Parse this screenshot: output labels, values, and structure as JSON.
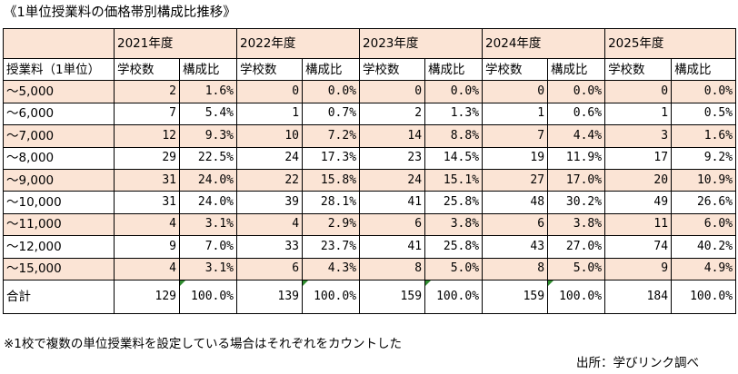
{
  "title": "《1単位授業料の価格帯別構成比推移》",
  "table": {
    "years": [
      "2021年度",
      "2022年度",
      "2023年度",
      "2024年度",
      "2025年度"
    ],
    "row_header": "授業料（1単位）",
    "col_count_label": "学校数",
    "col_ratio_label": "構成比",
    "rows": [
      {
        "label": "～5,000",
        "cells": [
          [
            "2",
            "1.6%"
          ],
          [
            "0",
            "0.0%"
          ],
          [
            "0",
            "0.0%"
          ],
          [
            "0",
            "0.0%"
          ],
          [
            "0",
            "0.0%"
          ]
        ]
      },
      {
        "label": "～6,000",
        "cells": [
          [
            "7",
            "5.4%"
          ],
          [
            "1",
            "0.7%"
          ],
          [
            "2",
            "1.3%"
          ],
          [
            "1",
            "0.6%"
          ],
          [
            "1",
            "0.5%"
          ]
        ]
      },
      {
        "label": "～7,000",
        "cells": [
          [
            "12",
            "9.3%"
          ],
          [
            "10",
            "7.2%"
          ],
          [
            "14",
            "8.8%"
          ],
          [
            "7",
            "4.4%"
          ],
          [
            "3",
            "1.6%"
          ]
        ]
      },
      {
        "label": "～8,000",
        "cells": [
          [
            "29",
            "22.5%"
          ],
          [
            "24",
            "17.3%"
          ],
          [
            "23",
            "14.5%"
          ],
          [
            "19",
            "11.9%"
          ],
          [
            "17",
            "9.2%"
          ]
        ]
      },
      {
        "label": "～9,000",
        "cells": [
          [
            "31",
            "24.0%"
          ],
          [
            "22",
            "15.8%"
          ],
          [
            "24",
            "15.1%"
          ],
          [
            "27",
            "17.0%"
          ],
          [
            "20",
            "10.9%"
          ]
        ]
      },
      {
        "label": "～10,000",
        "cells": [
          [
            "31",
            "24.0%"
          ],
          [
            "39",
            "28.1%"
          ],
          [
            "41",
            "25.8%"
          ],
          [
            "48",
            "30.2%"
          ],
          [
            "49",
            "26.6%"
          ]
        ]
      },
      {
        "label": "～11,000",
        "cells": [
          [
            "4",
            "3.1%"
          ],
          [
            "4",
            "2.9%"
          ],
          [
            "6",
            "3.8%"
          ],
          [
            "6",
            "3.8%"
          ],
          [
            "11",
            "6.0%"
          ]
        ]
      },
      {
        "label": "～12,000",
        "cells": [
          [
            "9",
            "7.0%"
          ],
          [
            "33",
            "23.7%"
          ],
          [
            "41",
            "25.8%"
          ],
          [
            "43",
            "27.0%"
          ],
          [
            "74",
            "40.2%"
          ]
        ]
      },
      {
        "label": "～15,000",
        "cells": [
          [
            "4",
            "3.1%"
          ],
          [
            "6",
            "4.3%"
          ],
          [
            "8",
            "5.0%"
          ],
          [
            "8",
            "5.0%"
          ],
          [
            "9",
            "4.9%"
          ]
        ]
      }
    ],
    "total": {
      "label": "合計",
      "cells": [
        [
          "129",
          "100.0%"
        ],
        [
          "139",
          "100.0%"
        ],
        [
          "159",
          "100.0%"
        ],
        [
          "159",
          "100.0%"
        ],
        [
          "184",
          "100.0%"
        ]
      ]
    }
  },
  "note": "※1校で複数の単位授業料を設定している場合はそれぞれをカウントした",
  "source": "出所：学びリンク調べ",
  "colors": {
    "shade": "#fbe4d5",
    "border": "#000000",
    "indicator": "#2e8b2e"
  }
}
